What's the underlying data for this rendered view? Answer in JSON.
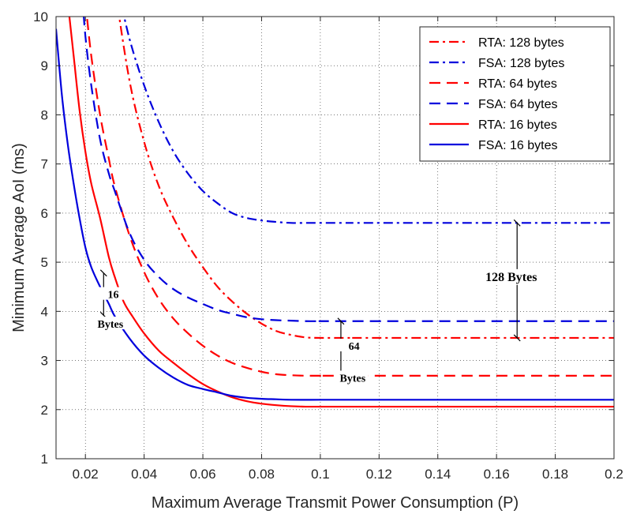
{
  "chart_data": {
    "type": "line",
    "xlabel": "Maximum Average Transmit Power Consumption (P)",
    "ylabel": "Minimum Average AoI (ms)",
    "xlim": [
      0.01,
      0.2
    ],
    "ylim": [
      1,
      10
    ],
    "xticks": [
      "0.02",
      "0.04",
      "0.06",
      "0.08",
      "0.1",
      "0.12",
      "0.14",
      "0.16",
      "0.18",
      "0.2"
    ],
    "yticks": [
      "1",
      "2",
      "3",
      "4",
      "5",
      "6",
      "7",
      "8",
      "9",
      "10"
    ],
    "grid": true,
    "legend_position": "top-right",
    "series": [
      {
        "name": "RTA: 128 bytes",
        "color": "#ff0000",
        "style": "dashdot",
        "x": [
          0.03,
          0.035,
          0.04,
          0.045,
          0.05,
          0.055,
          0.06,
          0.065,
          0.07,
          0.075,
          0.08,
          0.085,
          0.09,
          0.095,
          0.1,
          0.11,
          0.12,
          0.2
        ],
        "y": [
          10.6,
          8.7,
          7.45,
          6.55,
          5.9,
          5.35,
          4.9,
          4.5,
          4.2,
          3.95,
          3.75,
          3.6,
          3.52,
          3.47,
          3.46,
          3.46,
          3.46,
          3.46
        ]
      },
      {
        "name": "FSA: 128 bytes",
        "color": "#0000dd",
        "style": "dashdot",
        "x": [
          0.031,
          0.035,
          0.04,
          0.045,
          0.05,
          0.055,
          0.06,
          0.065,
          0.07,
          0.075,
          0.08,
          0.085,
          0.09,
          0.095,
          0.1,
          0.11,
          0.12,
          0.2
        ],
        "y": [
          10.6,
          9.55,
          8.6,
          7.85,
          7.25,
          6.8,
          6.45,
          6.2,
          6.0,
          5.9,
          5.85,
          5.82,
          5.8,
          5.8,
          5.8,
          5.8,
          5.8,
          5.8
        ]
      },
      {
        "name": "RTA: 64 bytes",
        "color": "#ff0000",
        "style": "dashed",
        "x": [
          0.02,
          0.022,
          0.025,
          0.028,
          0.03,
          0.035,
          0.04,
          0.045,
          0.05,
          0.055,
          0.06,
          0.065,
          0.07,
          0.075,
          0.08,
          0.085,
          0.09,
          0.095,
          0.1,
          0.11,
          0.2
        ],
        "y": [
          10.3,
          9.2,
          8.0,
          7.1,
          6.55,
          5.55,
          4.8,
          4.25,
          3.85,
          3.55,
          3.3,
          3.1,
          2.95,
          2.85,
          2.77,
          2.72,
          2.7,
          2.69,
          2.69,
          2.69,
          2.69
        ]
      },
      {
        "name": "FSA: 64 bytes",
        "color": "#0000dd",
        "style": "dashed",
        "x": [
          0.019,
          0.02,
          0.022,
          0.025,
          0.028,
          0.03,
          0.035,
          0.04,
          0.045,
          0.05,
          0.055,
          0.06,
          0.065,
          0.07,
          0.075,
          0.08,
          0.085,
          0.09,
          0.095,
          0.1,
          0.11,
          0.2
        ],
        "y": [
          10.4,
          9.6,
          8.6,
          7.5,
          6.8,
          6.45,
          5.6,
          5.05,
          4.7,
          4.45,
          4.28,
          4.15,
          4.03,
          3.95,
          3.88,
          3.84,
          3.82,
          3.81,
          3.8,
          3.8,
          3.8,
          3.8
        ]
      },
      {
        "name": "RTA: 16 bytes",
        "color": "#ff0000",
        "style": "solid",
        "x": [
          0.014,
          0.016,
          0.018,
          0.02,
          0.022,
          0.025,
          0.028,
          0.03,
          0.033,
          0.036,
          0.04,
          0.045,
          0.05,
          0.055,
          0.06,
          0.065,
          0.07,
          0.075,
          0.08,
          0.085,
          0.09,
          0.095,
          0.1,
          0.11,
          0.2
        ],
        "y": [
          10.3,
          9.2,
          8.1,
          7.25,
          6.6,
          5.9,
          5.1,
          4.7,
          4.2,
          3.9,
          3.55,
          3.2,
          2.95,
          2.72,
          2.52,
          2.37,
          2.25,
          2.17,
          2.12,
          2.09,
          2.07,
          2.06,
          2.06,
          2.06,
          2.06
        ]
      },
      {
        "name": "FSA: 16 bytes",
        "color": "#0000dd",
        "style": "solid",
        "x": [
          0.01,
          0.012,
          0.014,
          0.016,
          0.018,
          0.02,
          0.022,
          0.025,
          0.028,
          0.03,
          0.035,
          0.04,
          0.045,
          0.05,
          0.055,
          0.06,
          0.065,
          0.07,
          0.075,
          0.08,
          0.085,
          0.09,
          0.1,
          0.11,
          0.2
        ],
        "y": [
          9.75,
          8.4,
          7.4,
          6.6,
          5.9,
          5.3,
          4.9,
          4.5,
          4.15,
          3.9,
          3.45,
          3.1,
          2.85,
          2.65,
          2.5,
          2.42,
          2.35,
          2.28,
          2.24,
          2.22,
          2.21,
          2.2,
          2.2,
          2.2,
          2.2
        ]
      }
    ],
    "annotations": [
      {
        "text": "16",
        "x": 0.0295,
        "y": 4.3
      },
      {
        "text": "Bytes",
        "x": 0.0285,
        "y": 3.7
      },
      {
        "text": "64",
        "x": 0.1115,
        "y": 3.25
      },
      {
        "text": "Bytes",
        "x": 0.111,
        "y": 2.6
      },
      {
        "text": "128 Bytes",
        "x": 0.165,
        "y": 4.65
      }
    ],
    "brackets": [
      {
        "x": 0.0262,
        "y_top": 4.78,
        "y_bot": 3.92
      },
      {
        "x": 0.107,
        "y_top": 3.8,
        "y_bot": 2.69
      },
      {
        "x": 0.167,
        "y_top": 5.8,
        "y_bot": 3.46
      }
    ]
  }
}
